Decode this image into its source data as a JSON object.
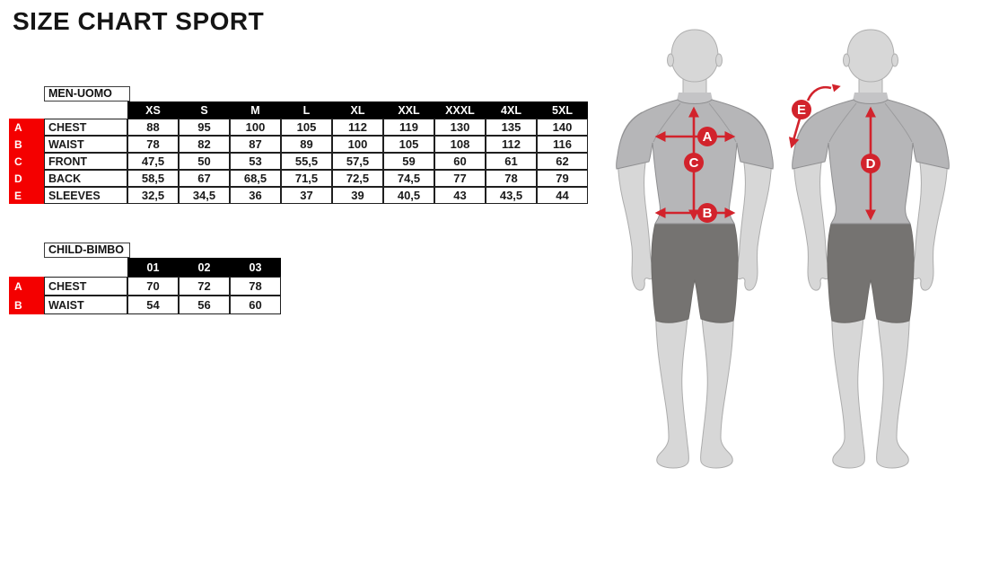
{
  "title": "SIZE CHART SPORT",
  "men_table": {
    "label": "MEN-UOMO",
    "sizes": [
      "XS",
      "S",
      "M",
      "L",
      "XL",
      "XXL",
      "XXXL",
      "4XL",
      "5XL"
    ],
    "rows": [
      {
        "letter": "A",
        "name": "CHEST",
        "values": [
          "88",
          "95",
          "100",
          "105",
          "112",
          "119",
          "130",
          "135",
          "140"
        ]
      },
      {
        "letter": "B",
        "name": "WAIST",
        "values": [
          "78",
          "82",
          "87",
          "89",
          "100",
          "105",
          "108",
          "112",
          "116"
        ]
      },
      {
        "letter": "C",
        "name": "FRONT",
        "values": [
          "47,5",
          "50",
          "53",
          "55,5",
          "57,5",
          "59",
          "60",
          "61",
          "62"
        ]
      },
      {
        "letter": "D",
        "name": "BACK",
        "values": [
          "58,5",
          "67",
          "68,5",
          "71,5",
          "72,5",
          "74,5",
          "77",
          "78",
          "79"
        ]
      },
      {
        "letter": "E",
        "name": "SLEEVES",
        "values": [
          "32,5",
          "34,5",
          "36",
          "37",
          "39",
          "40,5",
          "43",
          "43,5",
          "44"
        ]
      }
    ]
  },
  "child_table": {
    "label": "CHILD-BIMBO",
    "sizes": [
      "01",
      "02",
      "03"
    ],
    "rows": [
      {
        "letter": "A",
        "name": "CHEST",
        "values": [
          "70",
          "72",
          "78"
        ]
      },
      {
        "letter": "B",
        "name": "WAIST",
        "values": [
          "54",
          "56",
          "60"
        ]
      }
    ]
  },
  "figure_marks": {
    "a": "A",
    "b": "B",
    "c": "C",
    "d": "D",
    "e": "E"
  },
  "colors": {
    "table_letter_red": "#f40000",
    "arrow_red": "#d2232c",
    "header_black": "#000000",
    "shirt_gray": "#b6b6b8",
    "skin_gray": "#d7d7d7",
    "shorts_gray": "#757371"
  }
}
